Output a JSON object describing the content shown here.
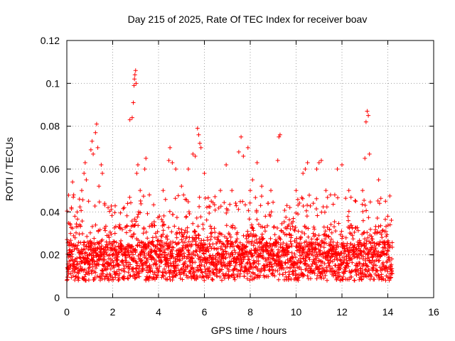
{
  "chart_data": {
    "type": "scatter",
    "title": "Day 215 of 2025, Rate Of TEC Index for receiver boav",
    "xlabel": "GPS time / hours",
    "ylabel": "ROTI / TECUs",
    "xlim": [
      0,
      16
    ],
    "ylim": [
      0,
      0.12
    ],
    "x_ticks": [
      0,
      2,
      4,
      6,
      8,
      10,
      12,
      14,
      16
    ],
    "y_ticks": [
      0,
      0.02,
      0.04,
      0.06,
      0.08,
      0.1,
      0.12
    ],
    "x_tick_labels": [
      "0",
      "2",
      "4",
      "6",
      "8",
      "10",
      "12",
      "14",
      "16"
    ],
    "y_tick_labels": [
      "0",
      "0.02",
      "0.04",
      "0.06",
      "0.08",
      "0.1",
      "0.12"
    ],
    "grid": true,
    "marker": "plus",
    "color": "#ff0000",
    "data_x_range_hours": [
      0,
      14.2
    ],
    "series": [
      {
        "name": "ROTI",
        "points": [
          [
            0.05,
            0.012
          ],
          [
            0.1,
            0.026
          ],
          [
            0.15,
            0.034
          ],
          [
            0.2,
            0.042
          ],
          [
            0.25,
            0.054
          ],
          [
            0.3,
            0.048
          ],
          [
            0.35,
            0.038
          ],
          [
            0.45,
            0.04
          ],
          [
            0.55,
            0.046
          ],
          [
            0.65,
            0.05
          ],
          [
            0.75,
            0.058
          ],
          [
            0.8,
            0.063
          ],
          [
            0.85,
            0.055
          ],
          [
            0.95,
            0.045
          ],
          [
            1.05,
            0.069
          ],
          [
            1.1,
            0.073
          ],
          [
            1.15,
            0.067
          ],
          [
            1.25,
            0.077
          ],
          [
            1.3,
            0.081
          ],
          [
            1.35,
            0.07
          ],
          [
            1.4,
            0.052
          ],
          [
            1.5,
            0.062
          ],
          [
            1.55,
            0.058
          ],
          [
            1.65,
            0.044
          ],
          [
            1.8,
            0.042
          ],
          [
            2.1,
            0.03
          ],
          [
            2.5,
            0.042
          ],
          [
            2.75,
            0.083
          ],
          [
            2.85,
            0.084
          ],
          [
            2.9,
            0.091
          ],
          [
            2.93,
            0.099
          ],
          [
            2.95,
            0.102
          ],
          [
            2.97,
            0.104
          ],
          [
            3.0,
            0.106
          ],
          [
            3.02,
            0.1
          ],
          [
            3.05,
            0.058
          ],
          [
            3.1,
            0.062
          ],
          [
            3.2,
            0.05
          ],
          [
            3.4,
            0.06
          ],
          [
            3.45,
            0.065
          ],
          [
            3.6,
            0.048
          ],
          [
            4.2,
            0.05
          ],
          [
            4.45,
            0.064
          ],
          [
            4.5,
            0.07
          ],
          [
            4.6,
            0.063
          ],
          [
            4.75,
            0.06
          ],
          [
            5.0,
            0.052
          ],
          [
            5.3,
            0.06
          ],
          [
            5.5,
            0.067
          ],
          [
            5.6,
            0.066
          ],
          [
            5.7,
            0.079
          ],
          [
            5.75,
            0.076
          ],
          [
            5.8,
            0.072
          ],
          [
            5.85,
            0.07
          ],
          [
            6.0,
            0.058
          ],
          [
            6.3,
            0.045
          ],
          [
            6.7,
            0.05
          ],
          [
            6.95,
            0.062
          ],
          [
            7.2,
            0.05
          ],
          [
            7.5,
            0.068
          ],
          [
            7.6,
            0.075
          ],
          [
            7.7,
            0.066
          ],
          [
            7.9,
            0.07
          ],
          [
            8.0,
            0.05
          ],
          [
            8.1,
            0.055
          ],
          [
            8.3,
            0.063
          ],
          [
            8.5,
            0.052
          ],
          [
            8.9,
            0.05
          ],
          [
            9.2,
            0.064
          ],
          [
            9.25,
            0.075
          ],
          [
            9.3,
            0.076
          ],
          [
            9.6,
            0.043
          ],
          [
            10.0,
            0.05
          ],
          [
            10.3,
            0.058
          ],
          [
            10.4,
            0.06
          ],
          [
            10.5,
            0.063
          ],
          [
            10.9,
            0.06
          ],
          [
            11.0,
            0.063
          ],
          [
            11.1,
            0.064
          ],
          [
            11.3,
            0.05
          ],
          [
            11.5,
            0.048
          ],
          [
            11.8,
            0.06
          ],
          [
            12.0,
            0.062
          ],
          [
            12.3,
            0.05
          ],
          [
            12.6,
            0.045
          ],
          [
            12.9,
            0.05
          ],
          [
            13.0,
            0.065
          ],
          [
            13.05,
            0.082
          ],
          [
            13.1,
            0.087
          ],
          [
            13.15,
            0.085
          ],
          [
            13.2,
            0.067
          ],
          [
            13.6,
            0.055
          ],
          [
            13.9,
            0.045
          ],
          [
            14.0,
            0.038
          ],
          [
            14.1,
            0.034
          ]
        ]
      }
    ]
  }
}
